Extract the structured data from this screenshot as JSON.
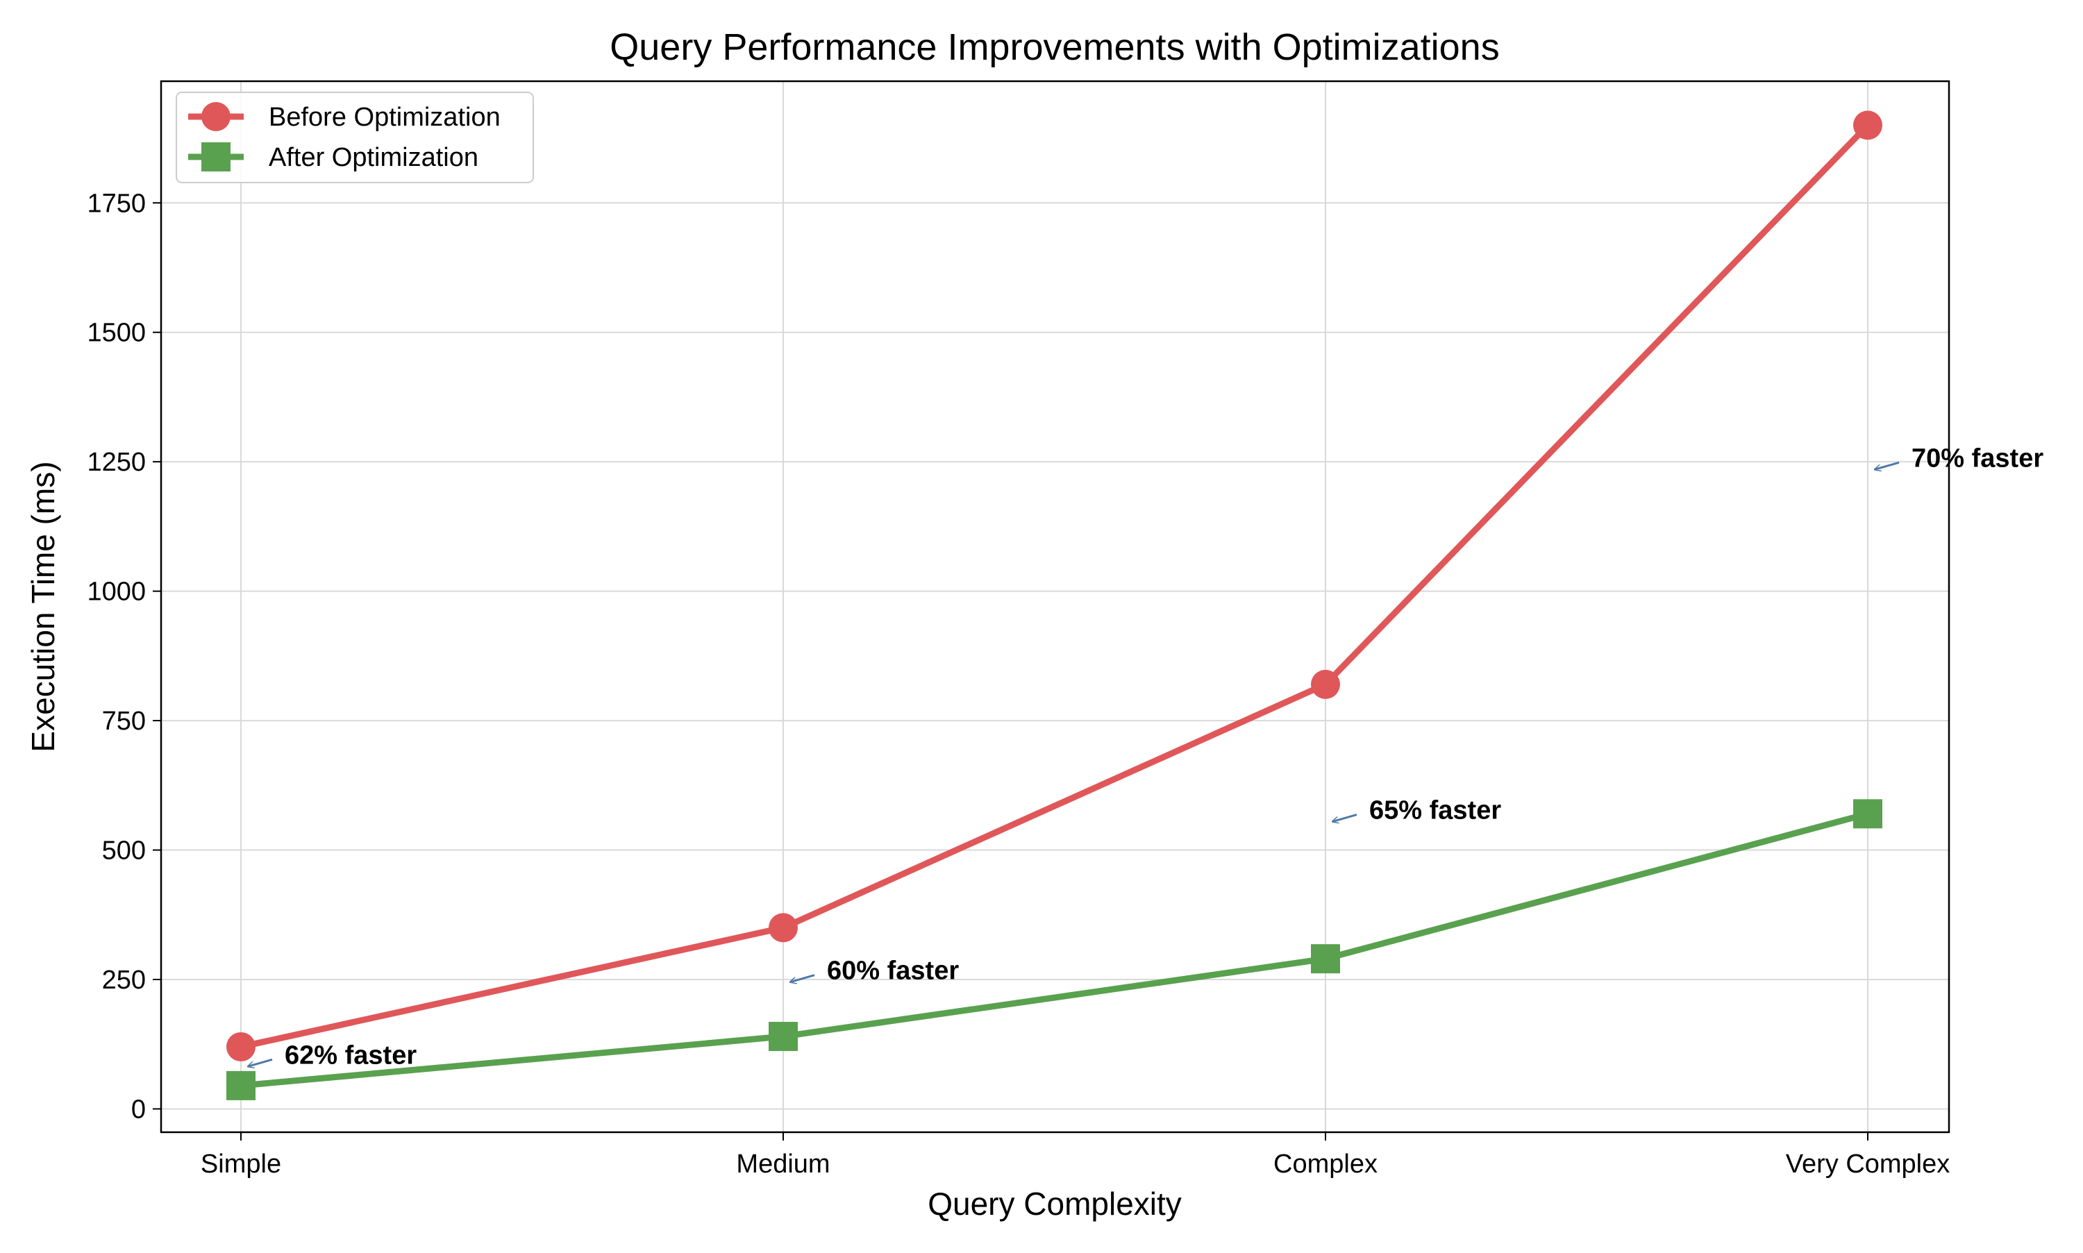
{
  "chart_data": {
    "type": "line",
    "title": "Query Performance Improvements with Optimizations",
    "xlabel": "Query Complexity",
    "ylabel": "Execution Time (ms)",
    "categories": [
      "Simple",
      "Medium",
      "Complex",
      "Very Complex"
    ],
    "ylim": [
      -45,
      1985
    ],
    "yticks": [
      0,
      250,
      500,
      750,
      1000,
      1250,
      1500,
      1750
    ],
    "grid": true,
    "legend_position": "top-left",
    "series": [
      {
        "name": "Before Optimization",
        "values": [
          120,
          350,
          820,
          1900
        ],
        "color": "#e05759",
        "marker": "circle"
      },
      {
        "name": "After Optimization",
        "values": [
          45,
          140,
          290,
          570
        ],
        "color": "#59a14f",
        "marker": "square"
      }
    ],
    "annotations": [
      {
        "text": "62% faster",
        "category": "Simple",
        "y": 82
      },
      {
        "text": "60% faster",
        "category": "Medium",
        "y": 245
      },
      {
        "text": "65% faster",
        "category": "Complex",
        "y": 555
      },
      {
        "text": "70% faster",
        "category": "Very Complex",
        "y": 1235
      }
    ],
    "annotation_arrow_color": "#4e79a7"
  }
}
